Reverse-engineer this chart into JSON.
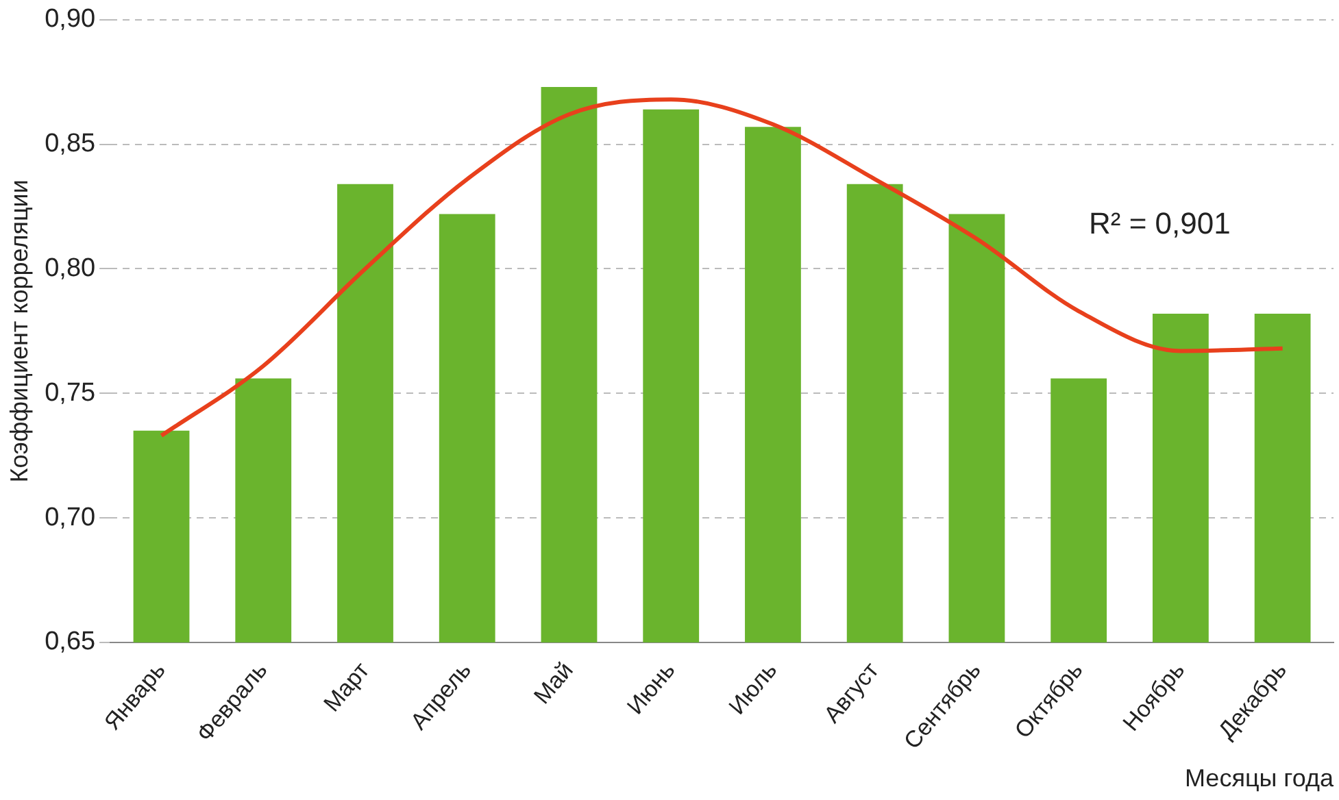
{
  "chart_data": {
    "type": "bar",
    "xlabel": "Месяцы года",
    "ylabel": "Коэффициент корреляции",
    "categories": [
      "Январь",
      "Февраль",
      "Март",
      "Апрель",
      "Май",
      "Июнь",
      "Июль",
      "Август",
      "Сентябрь",
      "Октябрь",
      "Ноябрь",
      "Декабрь"
    ],
    "series": [
      {
        "color": "#6ab42d",
        "values": [
          0.735,
          0.756,
          0.834,
          0.822,
          0.873,
          0.864,
          0.857,
          0.834,
          0.822,
          0.756,
          0.782,
          0.782
        ]
      },
      {
        "type": "line",
        "color": "#e8401c",
        "marker": "none",
        "values": [
          0.733,
          0.761,
          0.8,
          0.836,
          0.862,
          0.868,
          0.858,
          0.836,
          0.812,
          0.783,
          0.767,
          0.768
        ]
      }
    ],
    "ylim": [
      0.65,
      0.9
    ],
    "yticks": [
      {
        "value": 0.65,
        "label": "0,65"
      },
      {
        "value": 0.7,
        "label": "0,70"
      },
      {
        "value": 0.75,
        "label": "0,75"
      },
      {
        "value": 0.8,
        "label": "0,80"
      },
      {
        "value": 0.85,
        "label": "0,85"
      },
      {
        "value": 0.9,
        "label": "0,90"
      }
    ],
    "grid": "y",
    "legend": false,
    "annotations": [
      "R² = 0,901"
    ]
  }
}
